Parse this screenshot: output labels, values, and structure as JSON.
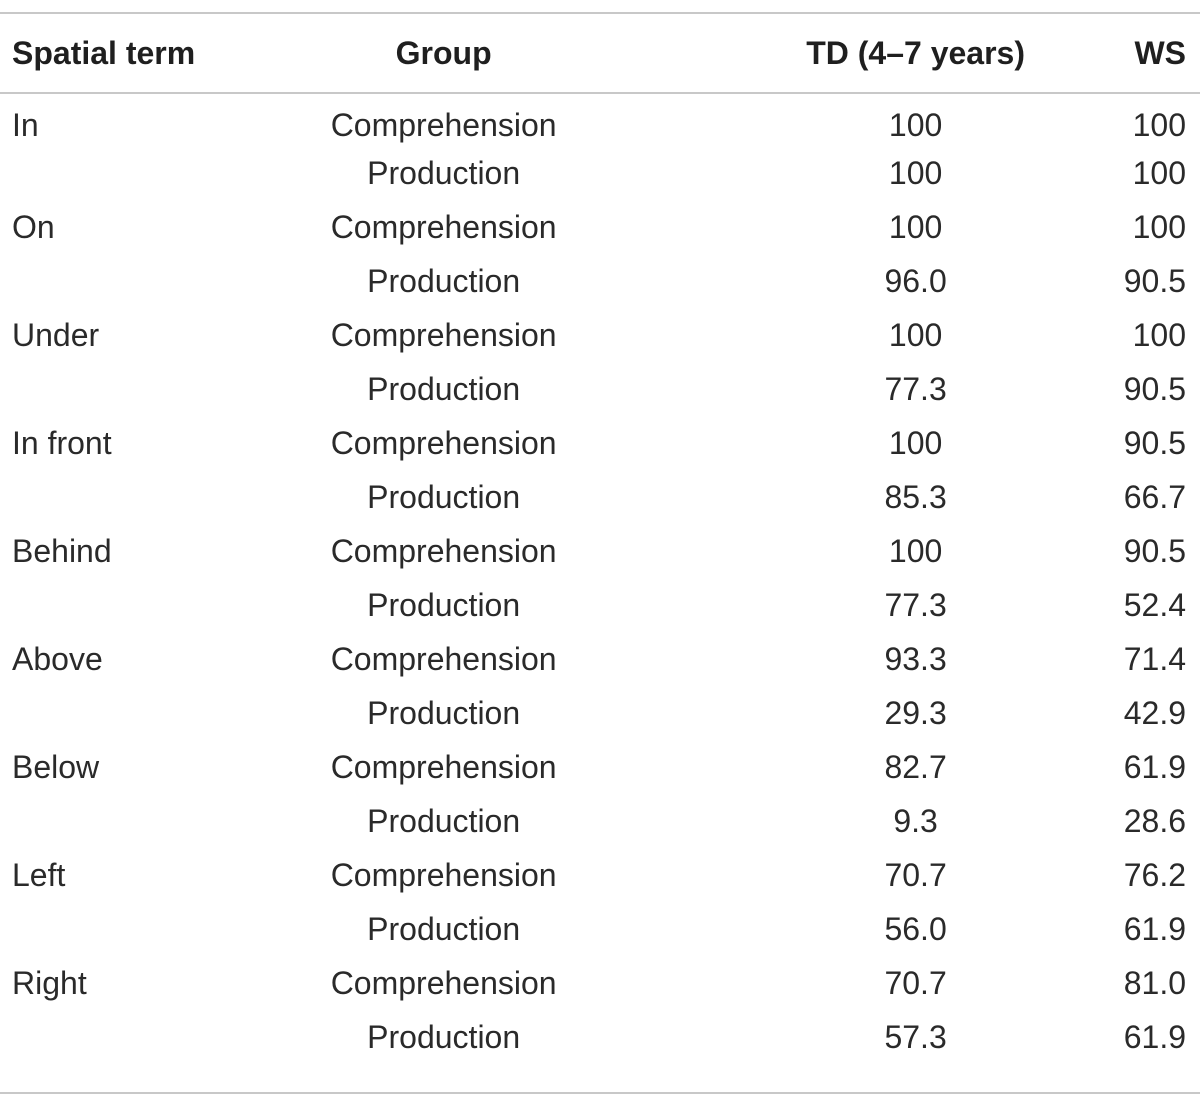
{
  "table": {
    "headers": [
      "Spatial term",
      "Group",
      "TD (4–7 years)",
      "WS"
    ],
    "rows": [
      {
        "term": "In",
        "group": "Comprehension",
        "td": "100",
        "ws": "100"
      },
      {
        "term": "",
        "group": "Production",
        "td": "100",
        "ws": "100"
      },
      {
        "term": "On",
        "group": "Comprehension",
        "td": "100",
        "ws": "100"
      },
      {
        "term": "",
        "group": "Production",
        "td": "96.0",
        "ws": "90.5"
      },
      {
        "term": "Under",
        "group": "Comprehension",
        "td": "100",
        "ws": "100"
      },
      {
        "term": "",
        "group": "Production",
        "td": "77.3",
        "ws": "90.5"
      },
      {
        "term": "In front",
        "group": "Comprehension",
        "td": "100",
        "ws": "90.5"
      },
      {
        "term": "",
        "group": "Production",
        "td": "85.3",
        "ws": "66.7"
      },
      {
        "term": "Behind",
        "group": "Comprehension",
        "td": "100",
        "ws": "90.5"
      },
      {
        "term": "",
        "group": "Production",
        "td": "77.3",
        "ws": "52.4"
      },
      {
        "term": "Above",
        "group": "Comprehension",
        "td": "93.3",
        "ws": "71.4"
      },
      {
        "term": "",
        "group": "Production",
        "td": "29.3",
        "ws": "42.9"
      },
      {
        "term": "Below",
        "group": "Comprehension",
        "td": "82.7",
        "ws": "61.9"
      },
      {
        "term": "",
        "group": "Production",
        "td": "9.3",
        "ws": "28.6"
      },
      {
        "term": "Left",
        "group": "Comprehension",
        "td": "70.7",
        "ws": "76.2"
      },
      {
        "term": "",
        "group": "Production",
        "td": "56.0",
        "ws": "61.9"
      },
      {
        "term": "Right",
        "group": "Comprehension",
        "td": "70.7",
        "ws": "81.0"
      },
      {
        "term": "",
        "group": "Production",
        "td": "57.3",
        "ws": "61.9"
      }
    ]
  }
}
